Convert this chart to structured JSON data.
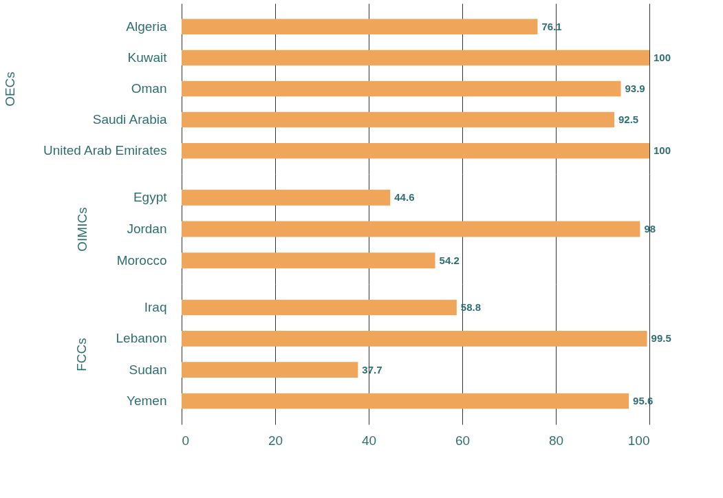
{
  "chart_data": [
    {
      "type": "bar",
      "orientation": "horizontal",
      "ylabel": "OECs",
      "categories": [
        "Algeria",
        "Kuwait",
        "Oman",
        "Saudi Arabia",
        "United Arab Emirates"
      ],
      "values": [
        76.1,
        100,
        93.9,
        92.5,
        100
      ],
      "color": "#f0a65a",
      "data_labels": true,
      "xlim": [
        0,
        100
      ],
      "xticks": [
        0,
        20,
        40,
        60,
        80,
        100
      ],
      "grid": "x",
      "tick_labels": "y"
    },
    {
      "type": "bar",
      "orientation": "horizontal",
      "ylabel": "OIMICs",
      "categories": [
        "Egypt",
        "Jordan",
        "Morocco"
      ],
      "values": [
        44.6,
        98,
        54.2
      ],
      "color": "#f0a65a",
      "data_labels": true,
      "xlim": [
        0,
        100
      ],
      "xticks": [
        0,
        20,
        40,
        60,
        80,
        100
      ],
      "grid": "x",
      "tick_labels": "y"
    },
    {
      "type": "bar",
      "orientation": "horizontal",
      "ylabel": "FCCs",
      "categories": [
        "Iraq",
        "Lebanon",
        "Sudan",
        "Yemen"
      ],
      "values": [
        58.8,
        99.5,
        37.7,
        95.6
      ],
      "color": "#f0a65a",
      "data_labels": true,
      "xlim": [
        0,
        100
      ],
      "xticks": [
        0,
        20,
        40,
        60,
        80,
        100
      ],
      "grid": "x"
    }
  ]
}
